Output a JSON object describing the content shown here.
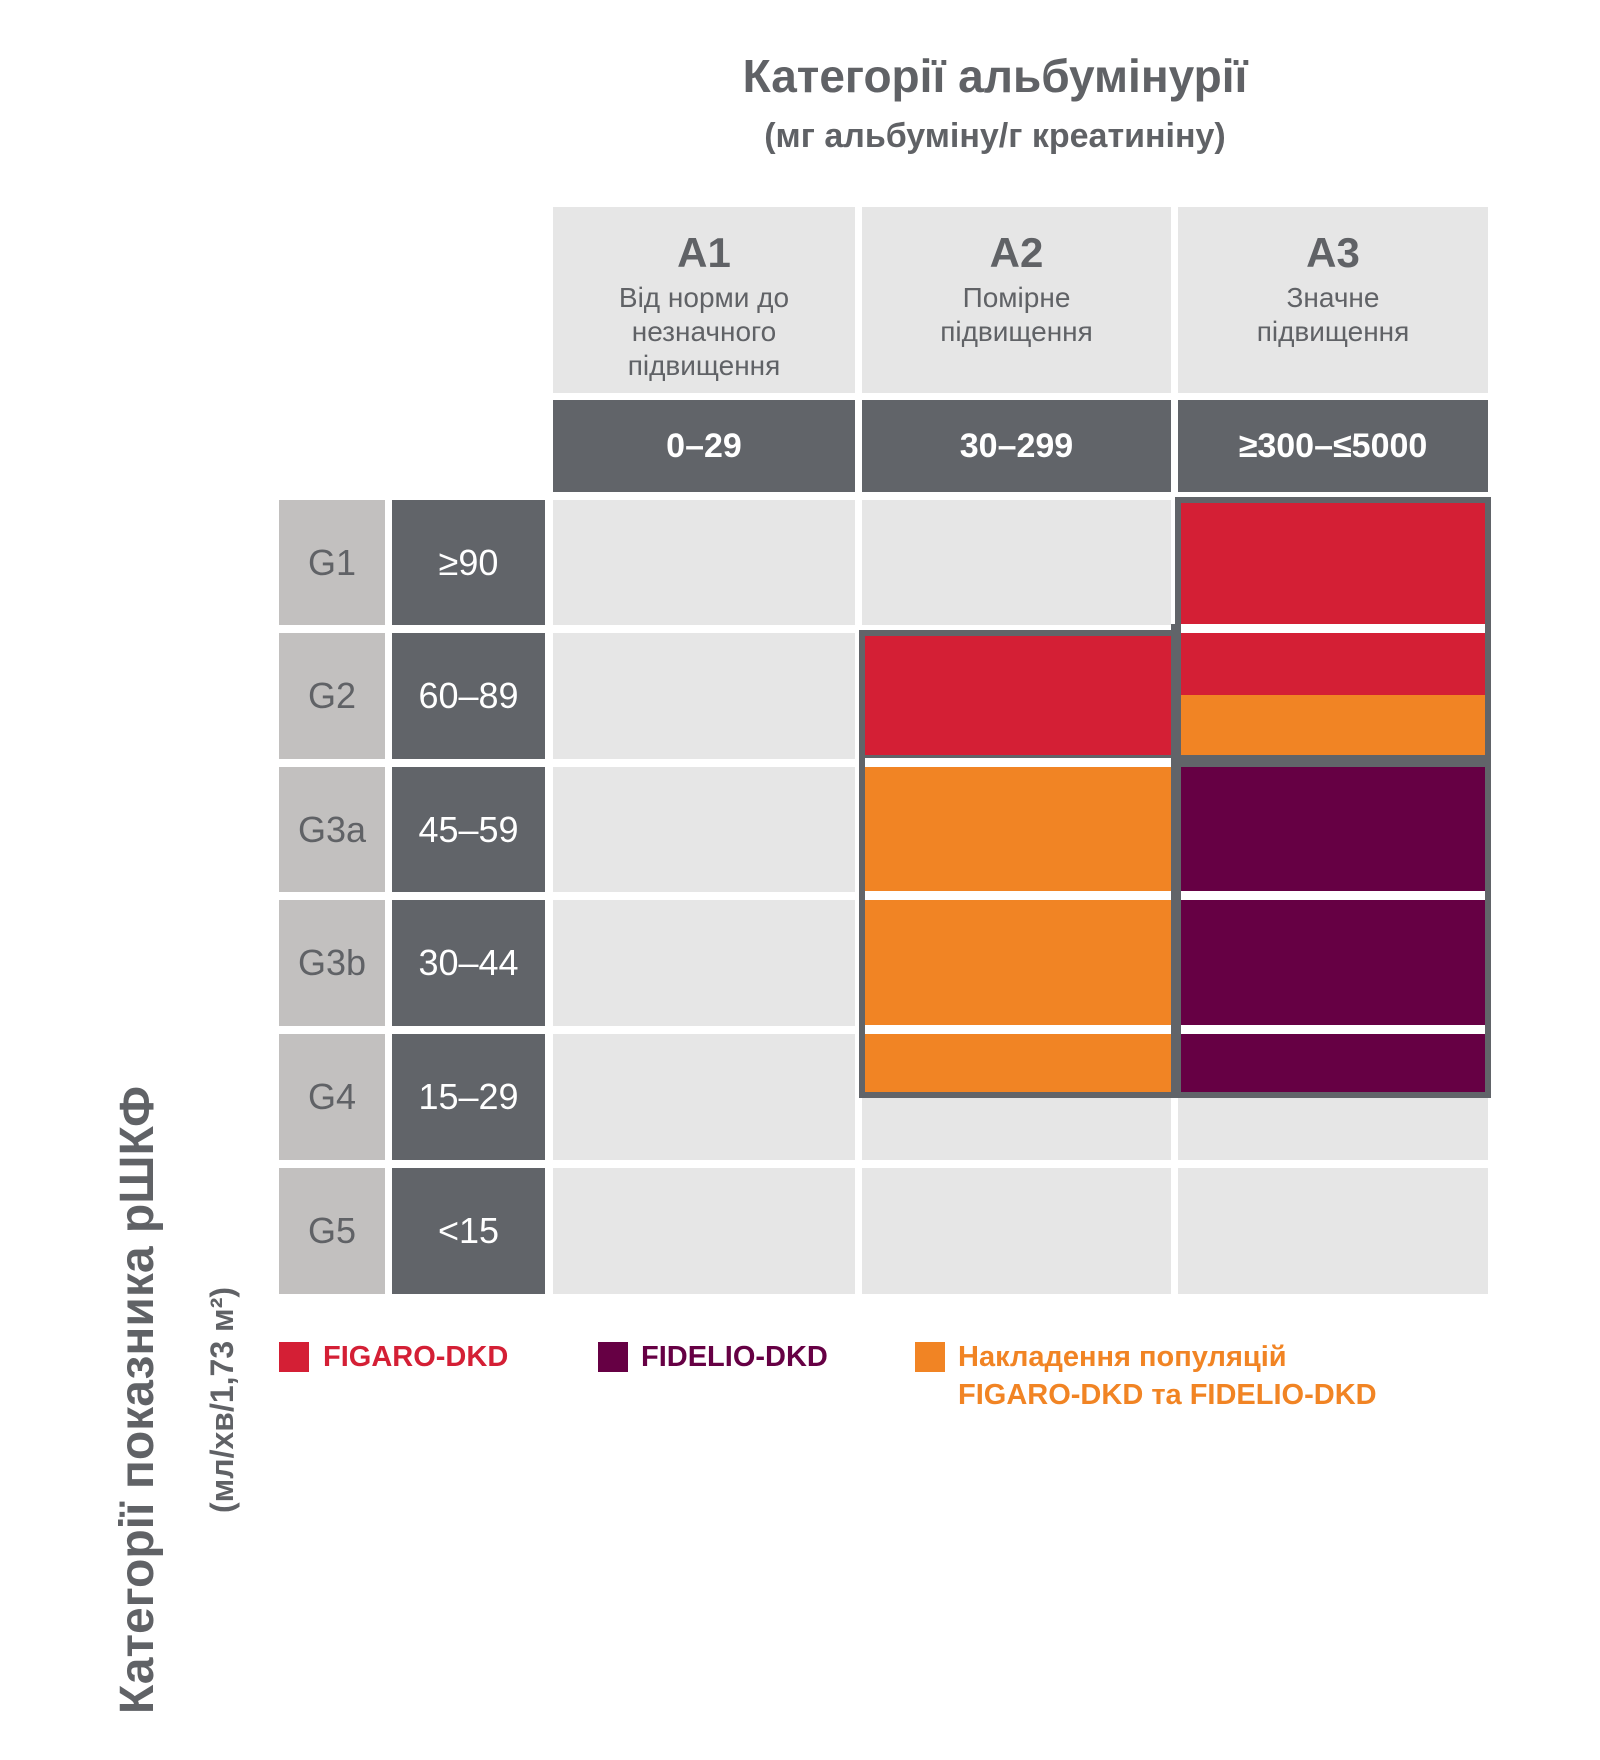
{
  "title": "Категорії альбумінурії",
  "subtitle": "(мг альбуміну/г креатиніну)",
  "y_axis": {
    "title": "Категорії показника рШКФ",
    "units": "(мл/хв/1,73 м²)"
  },
  "columns": [
    {
      "code": "A1",
      "description": "Від норми до незначного підвищення",
      "range": "0–29"
    },
    {
      "code": "A2",
      "description": "Помірне підвищення",
      "range": "30–299"
    },
    {
      "code": "A3",
      "description": "Значне підвищення",
      "range": "≥300–≤5000"
    }
  ],
  "rows": [
    {
      "code": "G1",
      "range": "≥90"
    },
    {
      "code": "G2",
      "range": "60–89"
    },
    {
      "code": "G3a",
      "range": "45–59"
    },
    {
      "code": "G3b",
      "range": "30–44"
    },
    {
      "code": "G4",
      "range": "15–29"
    },
    {
      "code": "G5",
      "range": "<15"
    }
  ],
  "legend": [
    {
      "label": "FIGARO-DKD",
      "color": "#d41f35"
    },
    {
      "label": "FIDELIO-DKD",
      "color": "#660044"
    },
    {
      "label_line1": "Накладення популяцій",
      "label_line2": "FIGARO-DKD та FIDELIO-DKD",
      "color": "#f18424"
    }
  ],
  "colors": {
    "figaro": "#d41f35",
    "fidelio": "#660044",
    "overlap": "#f18424",
    "dark_gray": "#616469",
    "light_gray": "#e6e6e6",
    "g_code_gray": "#c2c0bf",
    "text_gray": "#606266"
  }
}
